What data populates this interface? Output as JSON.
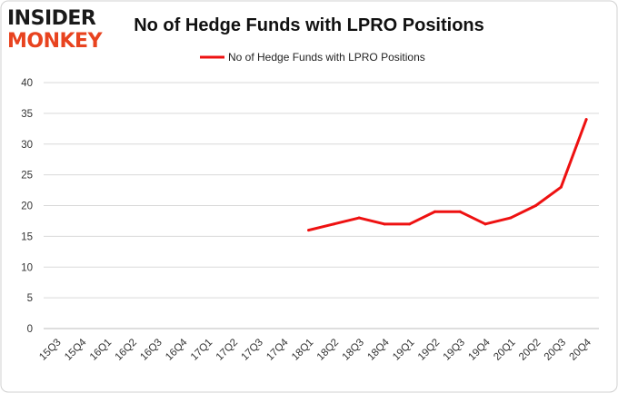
{
  "logo": {
    "line1": "INSIDER",
    "line2": "MONKEY"
  },
  "colors": {
    "series": "#ee1111",
    "grid": "#d9d9d9",
    "logo_accent": "#e8431f"
  },
  "chart_data": {
    "type": "line",
    "title": "No of Hedge Funds with LPRO Positions",
    "xlabel": "",
    "ylabel": "",
    "ylim": [
      0,
      40
    ],
    "yticks": [
      0,
      5,
      10,
      15,
      20,
      25,
      30,
      35,
      40
    ],
    "grid": true,
    "legend_position": "top-center",
    "categories": [
      "15Q3",
      "15Q4",
      "16Q1",
      "16Q2",
      "16Q3",
      "16Q4",
      "17Q1",
      "17Q2",
      "17Q3",
      "17Q4",
      "18Q1",
      "18Q2",
      "18Q3",
      "18Q4",
      "19Q1",
      "19Q2",
      "19Q3",
      "19Q4",
      "20Q1",
      "20Q2",
      "20Q3",
      "20Q4"
    ],
    "series": [
      {
        "name": "No of Hedge Funds with LPRO Positions",
        "values": [
          null,
          null,
          null,
          null,
          null,
          null,
          null,
          null,
          null,
          null,
          16,
          17,
          18,
          17,
          17,
          19,
          19,
          17,
          18,
          20,
          23,
          34
        ]
      }
    ]
  }
}
